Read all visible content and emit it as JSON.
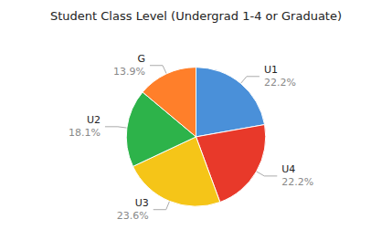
{
  "chart_data": {
    "type": "pie",
    "title": "Student Class Level (Undergrad 1-4 or Graduate)",
    "categories": [
      "U1",
      "U4",
      "U3",
      "U2",
      "G"
    ],
    "values": [
      22.2,
      22.2,
      23.6,
      18.1,
      13.9
    ],
    "value_labels": [
      "22.2%",
      "22.2%",
      "23.6%",
      "18.1%",
      "13.9%"
    ],
    "colors": [
      "#4A90D9",
      "#E8392A",
      "#F5C518",
      "#2DB34A",
      "#FF7F2A"
    ],
    "data_labels": true
  }
}
